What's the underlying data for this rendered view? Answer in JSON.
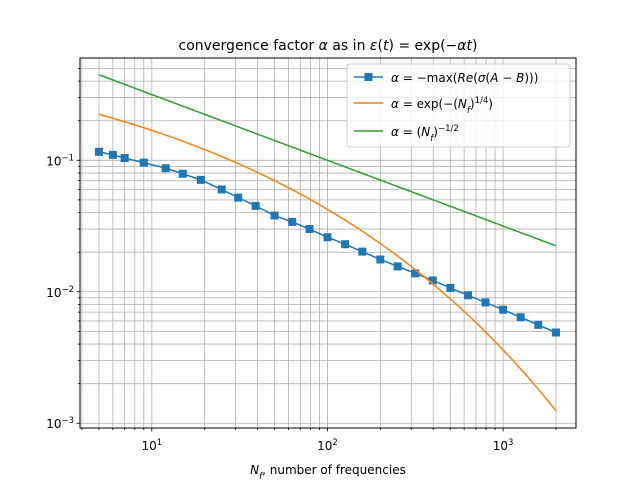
{
  "chart_data": {
    "type": "line",
    "title": "convergence factor α as in ε(t) = exp(−αt)",
    "xlabel": "N_f, number of frequencies",
    "ylabel": "",
    "xscale": "log",
    "yscale": "log",
    "xlim": [
      3.9,
      2600
    ],
    "ylim": [
      0.00092,
      0.6
    ],
    "grid": "both-major-and-minor",
    "legend_position": "top-right",
    "x_tick_labels": [
      "10^1",
      "10^2",
      "10^3"
    ],
    "y_tick_labels": [
      "10^-3",
      "10^-2",
      "10^-1"
    ],
    "series": [
      {
        "name": "α = −max(Re(σ(A − B)))",
        "color": "#1f77b4",
        "marker": "square",
        "x": [
          5,
          6,
          7,
          9,
          12,
          15,
          19,
          25,
          31,
          39,
          50,
          63,
          79,
          100,
          126,
          158,
          200,
          251,
          316,
          398,
          501,
          631,
          794,
          1000,
          1259,
          1585,
          2000
        ],
        "y": [
          0.116,
          0.11,
          0.104,
          0.096,
          0.087,
          0.079,
          0.071,
          0.06,
          0.052,
          0.045,
          0.038,
          0.034,
          0.03,
          0.026,
          0.023,
          0.0202,
          0.0176,
          0.0156,
          0.0138,
          0.0122,
          0.0107,
          0.0094,
          0.0083,
          0.0073,
          0.0064,
          0.0056,
          0.0049
        ]
      },
      {
        "name": "α = exp(−(N_f)^(1/4))",
        "color": "#ff7f0e",
        "marker": "none",
        "formula": "exp(-x^0.25)",
        "x_range": [
          5,
          2000
        ]
      },
      {
        "name": "α = (N_f)^(−1/2)",
        "color": "#2ca02c",
        "marker": "none",
        "formula": "x^-0.5",
        "x_range": [
          5,
          2000
        ]
      }
    ]
  }
}
